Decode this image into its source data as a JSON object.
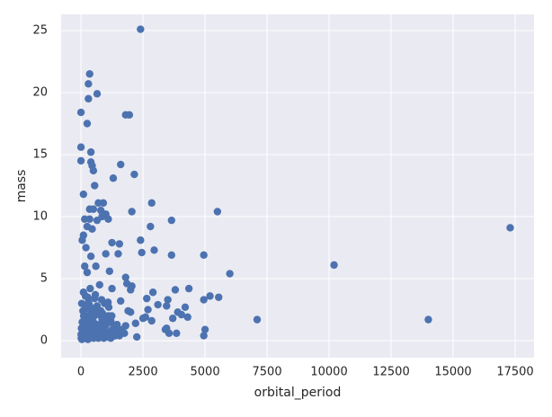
{
  "chart_data": {
    "type": "scatter",
    "x_label": "orbital_period",
    "y_label": "mass",
    "xlim": [
      -800,
      18260
    ],
    "ylim": [
      -1.37,
      26.3
    ],
    "xticks": [
      0,
      2500,
      5000,
      7500,
      10000,
      12500,
      15000,
      17500
    ],
    "yticks": [
      0,
      5,
      10,
      15,
      20,
      25
    ],
    "grid": true,
    "background": "#eaeaf2",
    "series": [
      {
        "color": "#4c72b0",
        "x": [
          2400,
          350,
          300,
          650,
          300,
          0,
          1800,
          1950,
          250,
          0,
          400,
          0,
          400,
          450,
          1600,
          500,
          2150,
          1300,
          550,
          100,
          2850,
          700,
          900,
          350,
          500,
          800,
          5500,
          2050,
          1000,
          850,
          350,
          150,
          1100,
          650,
          3650,
          450,
          250,
          17300,
          2800,
          100,
          2400,
          1250,
          1550,
          50,
          200,
          2950,
          2450,
          1000,
          1500,
          3650,
          4950,
          400,
          10200,
          150,
          600,
          6000,
          1800,
          250,
          1150,
          1850,
          2050,
          2000,
          4350,
          1250,
          750,
          5550,
          5200,
          4950,
          2900,
          3500,
          3800,
          1600,
          4200,
          2650,
          3100,
          2700,
          3450,
          3900,
          4300,
          4050,
          7100,
          14000,
          3450,
          3850,
          3550,
          5000,
          4950,
          3400,
          2000,
          2250,
          2500,
          2850,
          3700,
          1900,
          2200,
          2600,
          1800,
          10,
          50,
          100,
          150,
          200,
          250,
          300,
          350,
          400,
          450,
          500,
          550,
          600,
          650,
          700,
          750,
          800,
          850,
          900,
          950,
          1000,
          1050,
          1100,
          1150,
          1200,
          1300,
          1400,
          1500,
          20,
          80,
          130,
          180,
          240,
          290,
          330,
          380,
          420,
          470,
          520,
          580,
          620,
          680,
          720,
          780,
          830,
          880,
          940,
          990,
          1060,
          1120,
          1180,
          1260,
          1350,
          1450,
          30,
          60,
          110,
          160,
          210,
          270,
          320,
          370,
          430,
          490,
          540,
          610,
          670,
          740,
          810,
          870,
          960,
          1020,
          1090,
          1170,
          1240,
          1330,
          1420,
          1550,
          1650,
          1750,
          5,
          40,
          90,
          140,
          190,
          230,
          280,
          340,
          390,
          440,
          510,
          560,
          640,
          700,
          760,
          850,
          920,
          1010,
          1080,
          1200,
          1380
        ],
        "values": [
          25.1,
          21.5,
          20.7,
          19.9,
          19.5,
          18.4,
          18.2,
          18.2,
          17.5,
          15.6,
          15.2,
          14.5,
          14.4,
          14.1,
          14.2,
          13.7,
          13.4,
          13.1,
          12.5,
          11.8,
          11.1,
          11.1,
          11.1,
          10.6,
          10.6,
          10.5,
          10.4,
          10.4,
          10.2,
          10.0,
          9.8,
          9.8,
          9.8,
          9.7,
          9.7,
          9.0,
          9.2,
          9.1,
          9.2,
          8.5,
          8.1,
          7.9,
          7.8,
          8.1,
          7.5,
          7.3,
          7.1,
          7.0,
          7.0,
          6.9,
          6.9,
          6.8,
          6.1,
          6.0,
          6.0,
          5.4,
          5.1,
          5.5,
          5.6,
          4.6,
          4.4,
          4.1,
          4.2,
          4.2,
          4.5,
          3.5,
          3.6,
          3.3,
          3.9,
          3.3,
          4.1,
          3.2,
          2.7,
          3.4,
          2.9,
          2.5,
          2.8,
          2.3,
          1.9,
          2.1,
          1.7,
          1.7,
          1.0,
          0.6,
          0.6,
          0.9,
          0.4,
          0.9,
          2.3,
          0.3,
          1.8,
          1.6,
          1.8,
          2.4,
          1.4,
          1.9,
          1.2,
          0.2,
          1.5,
          3.9,
          0.8,
          2.6,
          0.4,
          3.1,
          1.2,
          2.2,
          0.6,
          1.9,
          3.4,
          0.3,
          2.8,
          1.1,
          0.5,
          2.4,
          1.7,
          0.9,
          3.0,
          0.4,
          1.4,
          2.0,
          0.7,
          1.6,
          0.5,
          1.1,
          0.8,
          1.0,
          2.4,
          0.6,
          3.6,
          1.8,
          0.9,
          2.9,
          0.3,
          1.5,
          2.6,
          0.8,
          3.7,
          1.3,
          0.4,
          2.1,
          1.0,
          3.3,
          0.6,
          1.9,
          1.2,
          0.5,
          2.7,
          1.5,
          0.9,
          0.4,
          1.3,
          3.0,
          0.7,
          2.0,
          1.3,
          0.5,
          3.5,
          1.6,
          4.2,
          0.9,
          2.3,
          1.4,
          0.5,
          2.5,
          1.2,
          0.3,
          2.2,
          0.8,
          1.7,
          3.1,
          0.6,
          2.0,
          1.1,
          0.7,
          0.4,
          0.9,
          0.6,
          0.5,
          0.1,
          0.9,
          0.2,
          1.2,
          2.0,
          0.1,
          0.3,
          0.6,
          1.0,
          0.2,
          0.4,
          0.7,
          0.2,
          1.3,
          0.3,
          0.2,
          0.6,
          0.3,
          0.2,
          0.4
        ]
      }
    ]
  }
}
